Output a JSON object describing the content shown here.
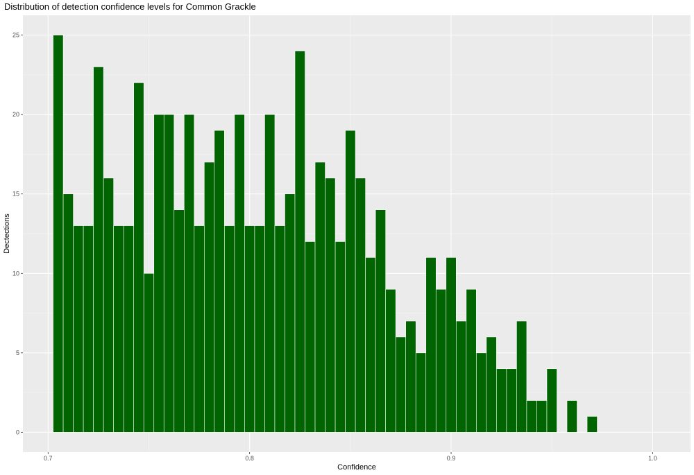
{
  "chart_data": {
    "type": "bar",
    "title": "Distribution of detection confidence levels for Common Grackle",
    "xlabel": "Confidence",
    "ylabel": "Dectections",
    "bin_width": 0.005,
    "xlim": [
      0.6875,
      1.0188
    ],
    "ylim": [
      -1.25,
      26.25
    ],
    "x_ticks": [
      0.7,
      0.8,
      0.9,
      1.0
    ],
    "x_tick_labels": [
      "0.7",
      "0.8",
      "0.9",
      "1.0"
    ],
    "y_ticks": [
      0,
      5,
      10,
      15,
      20,
      25
    ],
    "y_tick_labels": [
      "0",
      "5",
      "10",
      "15",
      "20",
      "25"
    ],
    "x": [
      0.705,
      0.71,
      0.715,
      0.72,
      0.725,
      0.73,
      0.735,
      0.74,
      0.745,
      0.75,
      0.755,
      0.76,
      0.765,
      0.77,
      0.775,
      0.78,
      0.785,
      0.79,
      0.795,
      0.8,
      0.805,
      0.81,
      0.815,
      0.82,
      0.825,
      0.83,
      0.835,
      0.84,
      0.845,
      0.85,
      0.855,
      0.86,
      0.865,
      0.87,
      0.875,
      0.88,
      0.885,
      0.89,
      0.895,
      0.9,
      0.905,
      0.91,
      0.915,
      0.92,
      0.925,
      0.93,
      0.935,
      0.94,
      0.945,
      0.95,
      0.96,
      0.97
    ],
    "values": [
      25,
      15,
      13,
      13,
      23,
      16,
      13,
      13,
      22,
      10,
      20,
      20,
      14,
      20,
      13,
      17,
      19,
      13,
      20,
      13,
      13,
      20,
      13,
      15,
      24,
      12,
      17,
      16,
      12,
      19,
      16,
      11,
      14,
      9,
      6,
      7,
      5,
      11,
      9,
      11,
      7,
      9,
      5,
      6,
      4,
      4,
      7,
      2,
      2,
      4,
      2,
      1
    ],
    "bar_color": "#006400",
    "bar_outline": "#ffffff",
    "panel_background": "#ebebeb",
    "grid": true,
    "legend": "none"
  }
}
